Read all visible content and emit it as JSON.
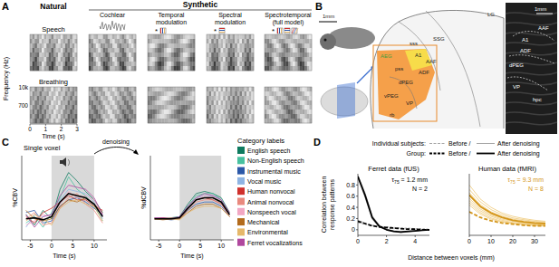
{
  "panels": {
    "A": {
      "letter": "A",
      "natural": "Natural",
      "synthetic": "Synthetic",
      "columns": [
        [
          "Cochlear"
        ],
        [
          "Temporal",
          "modulation"
        ],
        [
          "Spectral",
          "modulation"
        ],
        [
          "Spectrotemporal",
          "(full model)"
        ]
      ],
      "rows": [
        "Speech",
        "Breathing"
      ],
      "y_label": "Frequency (Hz)",
      "freq_ticks": [
        "10k",
        "700"
      ],
      "x_label": "Time (s)",
      "xlim": [
        0,
        3
      ],
      "xticks": [
        0,
        1,
        2,
        3
      ],
      "star": "*"
    },
    "B": {
      "letter": "B",
      "labels": [
        "1mm",
        "SSG",
        "LG",
        "sss",
        "AEG",
        "A1",
        "AAF",
        "ADF",
        "pss",
        "dPEG",
        "vPEG",
        "VP",
        "rb"
      ],
      "inset_labels": [
        "1mm",
        "AAF",
        "A1",
        "ADF",
        "dPEG",
        "VP",
        "hpc"
      ]
    },
    "C": {
      "letter": "C",
      "arrow": "denoising",
      "legend_title": "Category labels"
    },
    "D": {
      "letter": "D",
      "legend_rows": [
        {
          "label": "Individual subjects:",
          "before": "Before /",
          "after": "After denoising"
        },
        {
          "label": "Group:",
          "before": "Before /",
          "after": "After denoising"
        }
      ],
      "x_label": "Distance between voxels (mm)",
      "y_label": [
        "Correlation between",
        "response patterns"
      ]
    }
  },
  "chart_data": [
    {
      "type": "line",
      "title": "Single voxel",
      "y_label": "%CBV",
      "x_label": "Time (s)",
      "x": [
        -6,
        -4,
        -2,
        0,
        2,
        4,
        6,
        8,
        10,
        12
      ],
      "xlim": [
        -7,
        13
      ],
      "xticks": [
        -5,
        0,
        5,
        10
      ],
      "ylim": [
        -10,
        30
      ],
      "tick_labels": "x",
      "stimulus": [
        0,
        10
      ],
      "series": [
        {
          "name": "English speech",
          "color": "#0f7b5f",
          "values": [
            2,
            -3,
            4,
            0,
            14,
            22,
            18,
            13,
            9,
            3
          ]
        },
        {
          "name": "Non-English speech",
          "color": "#48c1a0",
          "values": [
            -2,
            1,
            -4,
            3,
            10,
            20,
            14,
            11,
            6,
            -1
          ]
        },
        {
          "name": "Instrumental music",
          "color": "#2c58a8",
          "values": [
            3,
            4,
            -2,
            -1,
            6,
            9,
            10,
            8,
            5,
            2
          ]
        },
        {
          "name": "Vocal music",
          "color": "#8fb4e3",
          "values": [
            -4,
            2,
            1,
            2,
            9,
            14,
            13,
            12,
            8,
            0
          ]
        },
        {
          "name": "Human nonvocal",
          "color": "#d0312d",
          "values": [
            1,
            -2,
            3,
            5,
            8,
            11,
            9,
            9,
            6,
            4
          ]
        },
        {
          "name": "Animal nonvocal",
          "color": "#e9897e",
          "values": [
            0,
            3,
            -3,
            -2,
            5,
            10,
            12,
            7,
            4,
            -2
          ]
        },
        {
          "name": "Nonspeech vocal",
          "color": "#f2a7c3",
          "values": [
            -3,
            -1,
            2,
            1,
            7,
            13,
            10,
            11,
            9,
            1
          ]
        },
        {
          "name": "Mechanical",
          "color": "#b36b1c",
          "values": [
            4,
            0,
            -1,
            0,
            6,
            9,
            8,
            10,
            7,
            3
          ]
        },
        {
          "name": "Environmental",
          "color": "#e6b86a",
          "values": [
            -1,
            2,
            0,
            -3,
            5,
            8,
            9,
            7,
            6,
            -1
          ]
        },
        {
          "name": "Ferret vocalizations",
          "color": "#b0489e",
          "values": [
            2,
            -4,
            1,
            2,
            11,
            16,
            15,
            14,
            10,
            2
          ]
        }
      ],
      "mean": {
        "color": "#000000",
        "values": [
          0,
          0.5,
          -0.5,
          1,
          8,
          12,
          11,
          10,
          7,
          1
        ]
      }
    },
    {
      "type": "line",
      "y_label": "%dCBV",
      "x_label": "Time (s)",
      "x": [
        -6,
        -4,
        -2,
        0,
        2,
        4,
        6,
        8,
        10,
        12
      ],
      "xlim": [
        -7,
        13
      ],
      "xticks": [
        -5,
        0,
        5,
        10
      ],
      "ylim": [
        -10,
        30
      ],
      "tick_labels": "x",
      "stimulus": [
        0,
        10
      ],
      "series": [
        {
          "name": "English speech",
          "color": "#0f7b5f",
          "values": [
            0.5,
            0,
            0.5,
            1,
            7,
            12,
            13,
            12,
            10,
            3
          ]
        },
        {
          "name": "Non-English speech",
          "color": "#48c1a0",
          "values": [
            0,
            0.5,
            0,
            1,
            6,
            11,
            12,
            12,
            9,
            2
          ]
        },
        {
          "name": "Instrumental music",
          "color": "#2c58a8",
          "values": [
            0,
            0,
            -0.5,
            0,
            4,
            7,
            8,
            8,
            6,
            1
          ]
        },
        {
          "name": "Vocal music",
          "color": "#8fb4e3",
          "values": [
            0.5,
            0,
            0,
            1,
            6,
            10,
            11,
            11,
            9,
            2
          ]
        },
        {
          "name": "Human nonvocal",
          "color": "#d0312d",
          "values": [
            0,
            0.5,
            0,
            0.5,
            5,
            9,
            10,
            9,
            7,
            2
          ]
        },
        {
          "name": "Animal nonvocal",
          "color": "#e9897e",
          "values": [
            0,
            0,
            0.5,
            0,
            4,
            8,
            9,
            9,
            7,
            1
          ]
        },
        {
          "name": "Nonspeech vocal",
          "color": "#f2a7c3",
          "values": [
            0.5,
            0,
            0,
            0.5,
            5,
            9,
            11,
            10,
            8,
            2
          ]
        },
        {
          "name": "Mechanical",
          "color": "#b36b1c",
          "values": [
            0,
            -0.5,
            0,
            0,
            3,
            6,
            7,
            7,
            5,
            1
          ]
        },
        {
          "name": "Environmental",
          "color": "#e6b86a",
          "values": [
            0,
            0,
            0,
            -0.5,
            3,
            5,
            6,
            6,
            5,
            1
          ]
        },
        {
          "name": "Ferret vocalizations",
          "color": "#b0489e",
          "values": [
            0.5,
            0.5,
            0,
            1,
            6,
            10,
            12,
            11,
            9,
            3
          ]
        }
      ],
      "mean": {
        "color": "#000000",
        "values": [
          0,
          0,
          0,
          0.5,
          5,
          9,
          10,
          10,
          8,
          2
        ]
      }
    },
    {
      "type": "line",
      "title": "Ferret data (fUS)",
      "color": "#000000",
      "annotations": [
        {
          "text": "τ",
          "sub": "75",
          "rest": " = 1.2 mm"
        },
        {
          "text": "N = 2"
        }
      ],
      "x": [
        0,
        0.5,
        1,
        1.5,
        2,
        2.5,
        3,
        3.5,
        4,
        4.5,
        5
      ],
      "xlim": [
        0,
        5
      ],
      "xticks": [
        0,
        2,
        4
      ],
      "ylim": [
        -0.1,
        1.0
      ],
      "yticks": [
        0,
        0.2,
        0.4,
        0.6,
        0.8
      ],
      "series": [
        {
          "color": "#9a9a9a",
          "line_style": "dashed",
          "values": [
            0.13,
            0.1,
            0.08,
            0.06,
            0.05,
            0.04,
            0.03,
            0.03,
            0.02,
            0.02,
            0.01
          ]
        },
        {
          "color": "#9a9a9a",
          "line_style": "dashed",
          "values": [
            0.17,
            0.12,
            0.07,
            0.04,
            0.03,
            0.02,
            0.02,
            0.01,
            0,
            0,
            0
          ]
        },
        {
          "color": "#9a9a9a",
          "line_style": "solid",
          "values": [
            0.97,
            0.66,
            0.25,
            0.08,
            0.01,
            -0.02,
            -0.03,
            -0.03,
            -0.02,
            -0.01,
            0
          ]
        },
        {
          "color": "#9a9a9a",
          "line_style": "solid",
          "values": [
            0.93,
            0.58,
            0.19,
            0.05,
            0,
            -0.03,
            -0.05,
            -0.04,
            -0.02,
            -0.01,
            0
          ]
        },
        {
          "color": "#000000",
          "line_style": "dashed",
          "values": [
            0.15,
            0.11,
            0.07,
            0.05,
            0.04,
            0.03,
            0.02,
            0.01,
            0.01,
            0,
            0
          ]
        },
        {
          "color": "#000000",
          "line_style": "solid",
          "values": [
            0.95,
            0.62,
            0.22,
            0.06,
            0,
            -0.03,
            -0.04,
            -0.03,
            -0.02,
            -0.01,
            0
          ]
        }
      ]
    },
    {
      "type": "line",
      "title": "Human data (fMRI)",
      "color": "#d4961a",
      "annotations": [
        {
          "text": "τ",
          "sub": "75",
          "rest": " = 9.3 mm"
        },
        {
          "text": "N = 8"
        }
      ],
      "x": [
        0,
        5,
        10,
        15,
        20,
        25,
        30,
        35
      ],
      "xlim": [
        0,
        35
      ],
      "xticks": [
        0,
        10,
        20,
        30
      ],
      "ylim": [
        -0.1,
        1.0
      ],
      "tick_labels": "x",
      "series": [
        {
          "color": "#efc978",
          "line_style": "solid",
          "values": [
            0.8,
            0.55,
            0.4,
            0.3,
            0.24,
            0.2,
            0.17,
            0.15
          ]
        },
        {
          "color": "#efc978",
          "line_style": "solid",
          "values": [
            0.72,
            0.5,
            0.36,
            0.27,
            0.21,
            0.18,
            0.15,
            0.14
          ]
        },
        {
          "color": "#efc978",
          "line_style": "solid",
          "values": [
            0.66,
            0.45,
            0.32,
            0.24,
            0.19,
            0.16,
            0.14,
            0.12
          ]
        },
        {
          "color": "#efc978",
          "line_style": "solid",
          "values": [
            0.6,
            0.4,
            0.28,
            0.21,
            0.16,
            0.13,
            0.11,
            0.1
          ]
        },
        {
          "color": "#efc978",
          "line_style": "solid",
          "values": [
            0.56,
            0.37,
            0.26,
            0.19,
            0.15,
            0.12,
            0.1,
            0.09
          ]
        },
        {
          "color": "#efc978",
          "line_style": "solid",
          "values": [
            0.52,
            0.34,
            0.24,
            0.17,
            0.13,
            0.11,
            0.09,
            0.08
          ]
        },
        {
          "color": "#efc978",
          "line_style": "solid",
          "values": [
            0.48,
            0.31,
            0.21,
            0.15,
            0.12,
            0.1,
            0.08,
            0.07
          ]
        },
        {
          "color": "#efc978",
          "line_style": "solid",
          "values": [
            0.44,
            0.28,
            0.19,
            0.14,
            0.11,
            0.09,
            0.08,
            0.07
          ]
        },
        {
          "color": "#d4961a",
          "line_style": "dashed",
          "values": [
            0.32,
            0.22,
            0.16,
            0.12,
            0.1,
            0.08,
            0.07,
            0.07
          ]
        },
        {
          "color": "#d4961a",
          "line_style": "solid",
          "values": [
            0.62,
            0.42,
            0.3,
            0.22,
            0.17,
            0.14,
            0.12,
            0.11
          ]
        }
      ]
    }
  ]
}
